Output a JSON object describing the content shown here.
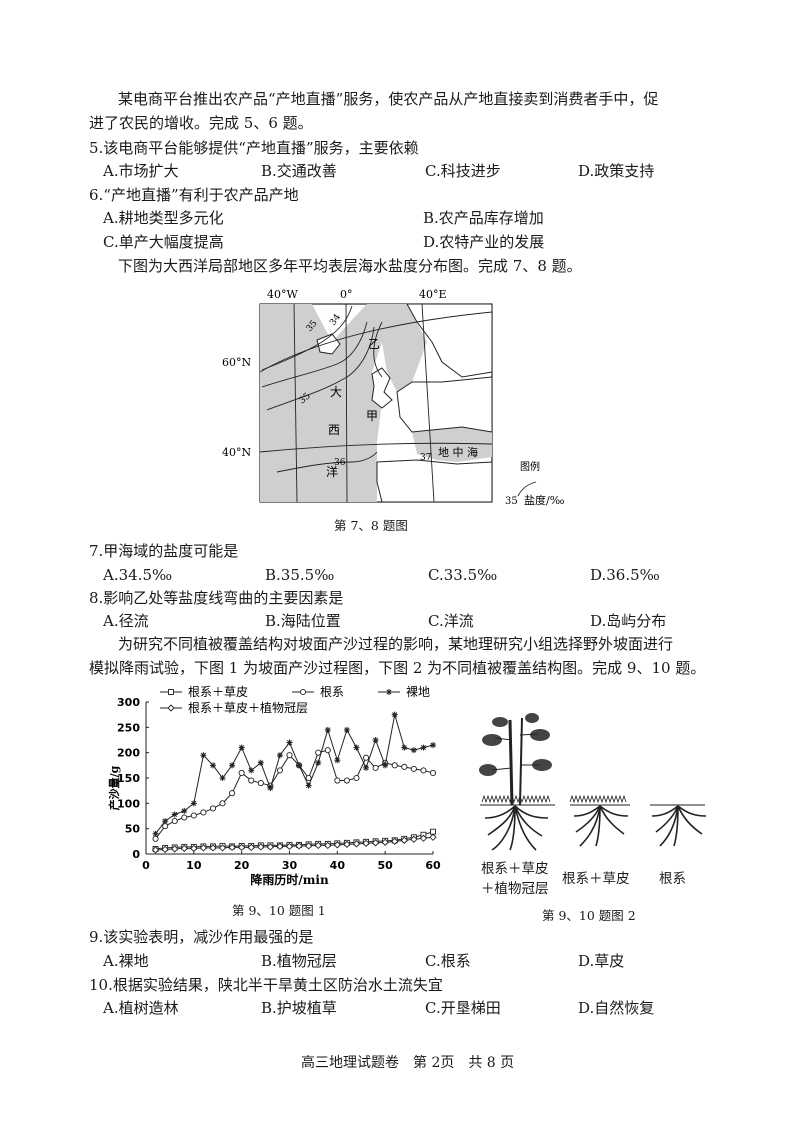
{
  "intro_56": {
    "line1": "某电商平台推出农产品“产地直播”服务，使农产品从产地直接卖到消费者手中，促",
    "line2": "进了农民的增收。完成 5、6 题。"
  },
  "q5": {
    "stem": "5.该电商平台能够提供“产地直播”服务，主要依赖",
    "options": [
      "A.市场扩大",
      "B.交通改善",
      "C.科技进步",
      "D.政策支持"
    ]
  },
  "q6": {
    "stem": "6.“产地直播”有利于农产品产地",
    "options": [
      "A.耕地类型多元化",
      "B.农产品库存增加",
      "C.单产大幅度提高",
      "D.农特产业的发展"
    ]
  },
  "intro_78": "下图为大西洋局部地区多年平均表层海水盐度分布图。完成 7、8 题。",
  "map": {
    "lon_labels": [
      "40°W",
      "0°",
      "40°E"
    ],
    "lat_labels": [
      "60°N",
      "40°N"
    ],
    "isolines": [
      "35",
      "34",
      "35",
      "36",
      "37"
    ],
    "place_labels": {
      "yi": "乙",
      "da": "大",
      "xi": "西",
      "yang": "洋",
      "jia": "甲",
      "med": "地 中 海"
    },
    "legend_title": "图例",
    "legend_value": "35",
    "legend_label": "盐度/‰",
    "caption": "第 7、8 题图"
  },
  "q7": {
    "stem": "7.甲海域的盐度可能是",
    "options": [
      "A.34.5‰",
      "B.35.5‰",
      "C.33.5‰",
      "D.36.5‰"
    ]
  },
  "q8": {
    "stem": "8.影响乙处等盐度线弯曲的主要因素是",
    "options": [
      "A.径流",
      "B.海陆位置",
      "C.洋流",
      "D.岛屿分布"
    ]
  },
  "intro_910": {
    "line1": "为研究不同植被覆盖结构对坡面产沙过程的影响，某地理研究小组选择野外坡面进行",
    "line2": "模拟降雨试验，下图 1 为坡面产沙过程图，下图 2 为不同植被覆盖结构图。完成 9、10 题。"
  },
  "chart_data": {
    "type": "line",
    "xlabel": "降雨历时/min",
    "ylabel": "产沙量/g",
    "xlim": [
      0,
      60
    ],
    "ylim": [
      0,
      300
    ],
    "xticks": [
      0,
      10,
      20,
      30,
      40,
      50,
      60
    ],
    "yticks": [
      0,
      50,
      100,
      150,
      200,
      250,
      300
    ],
    "legend_placement": "top",
    "series": [
      {
        "name": "根系＋草皮",
        "marker": "square",
        "x": [
          2,
          4,
          6,
          8,
          10,
          12,
          14,
          16,
          18,
          20,
          22,
          24,
          26,
          28,
          30,
          32,
          34,
          36,
          38,
          40,
          42,
          44,
          46,
          48,
          50,
          52,
          54,
          56,
          58,
          60
        ],
        "y": [
          10,
          12,
          13,
          14,
          14,
          15,
          15,
          16,
          15,
          16,
          16,
          17,
          17,
          17,
          18,
          18,
          19,
          20,
          20,
          21,
          22,
          23,
          24,
          25,
          26,
          27,
          30,
          33,
          38,
          44
        ]
      },
      {
        "name": "根系",
        "marker": "circle",
        "x": [
          2,
          4,
          6,
          8,
          10,
          12,
          14,
          16,
          18,
          20,
          22,
          24,
          26,
          28,
          30,
          32,
          34,
          36,
          38,
          40,
          42,
          44,
          46,
          48,
          50,
          52,
          54,
          56,
          58,
          60
        ],
        "y": [
          30,
          55,
          65,
          72,
          76,
          82,
          90,
          100,
          120,
          160,
          145,
          140,
          135,
          165,
          195,
          175,
          150,
          200,
          205,
          145,
          145,
          150,
          190,
          170,
          180,
          175,
          172,
          168,
          165,
          160
        ]
      },
      {
        "name": "裸地",
        "marker": "asterisk",
        "x": [
          2,
          4,
          6,
          8,
          10,
          12,
          14,
          16,
          18,
          20,
          22,
          24,
          26,
          28,
          30,
          32,
          34,
          36,
          38,
          40,
          42,
          44,
          46,
          48,
          50,
          52,
          54,
          56,
          58,
          60
        ],
        "y": [
          40,
          65,
          78,
          85,
          100,
          195,
          175,
          150,
          175,
          210,
          165,
          180,
          130,
          195,
          220,
          175,
          135,
          180,
          245,
          185,
          245,
          210,
          170,
          225,
          175,
          275,
          210,
          205,
          210,
          215
        ]
      },
      {
        "name": "根系＋草皮＋植物冠层",
        "marker": "diamond",
        "x": [
          2,
          4,
          6,
          8,
          10,
          12,
          14,
          16,
          18,
          20,
          22,
          24,
          26,
          28,
          30,
          32,
          34,
          36,
          38,
          40,
          42,
          44,
          46,
          48,
          50,
          52,
          54,
          56,
          58,
          60
        ],
        "y": [
          8,
          9,
          10,
          11,
          11,
          12,
          12,
          12,
          13,
          13,
          13,
          14,
          14,
          15,
          15,
          16,
          16,
          17,
          17,
          18,
          19,
          20,
          21,
          22,
          23,
          25,
          27,
          29,
          31,
          33
        ]
      }
    ]
  },
  "fig1_caption": "第 9、10 题图 1",
  "fig2": {
    "labels": [
      "根系＋草皮",
      "＋植物冠层",
      "根系＋草皮",
      "根系"
    ],
    "caption": "第 9、10 题图 2"
  },
  "q9": {
    "stem": "9.该实验表明，减沙作用最强的是",
    "options": [
      "A.裸地",
      "B.植物冠层",
      "C.根系",
      "D.草皮"
    ]
  },
  "q10": {
    "stem": "10.根据实验结果，陕北半干旱黄土区防治水土流失宜",
    "options": [
      "A.植树造林",
      "B.护坡植草",
      "C.开垦梯田",
      "D.自然恢复"
    ]
  },
  "footer": "高三地理试题卷　第 2页　共 8 页"
}
